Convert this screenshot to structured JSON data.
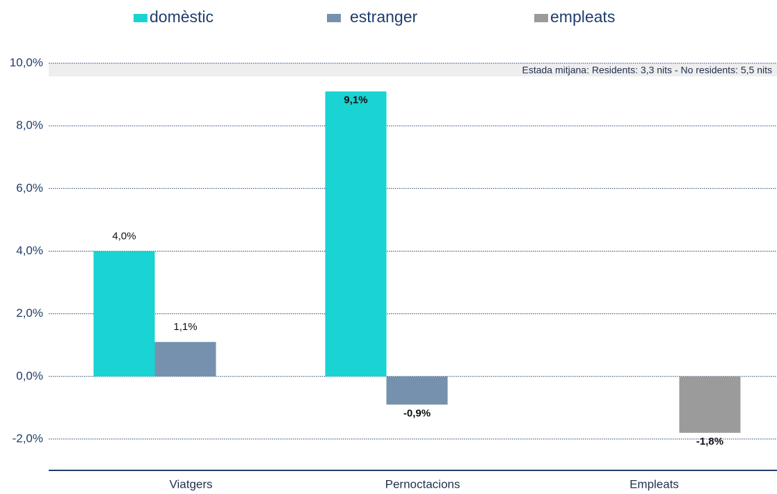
{
  "chart_data": {
    "type": "bar",
    "categories": [
      "Viatgers",
      "Pernoctacions",
      "Empleats"
    ],
    "series": [
      {
        "name": "domèstic",
        "color": "#1ad3d3",
        "values": [
          4.0,
          9.1,
          null
        ],
        "value_labels": [
          "4,0%",
          "9,1%",
          null
        ]
      },
      {
        "name": "estranger",
        "color": "#7691ad",
        "values": [
          1.1,
          -0.9,
          null
        ],
        "value_labels": [
          "1,1%",
          "-0,9%",
          null
        ]
      },
      {
        "name": "empleats",
        "color": "#9b9b9b",
        "values": [
          null,
          null,
          -1.8
        ],
        "value_labels": [
          null,
          null,
          "-1,8%"
        ]
      }
    ],
    "ylim": [
      -3,
      10
    ],
    "yticks": [
      {
        "value": -2,
        "label": "-2,0%"
      },
      {
        "value": 0,
        "label": "0,0%"
      },
      {
        "value": 2,
        "label": "2,0%"
      },
      {
        "value": 4,
        "label": "4,0%"
      },
      {
        "value": 6,
        "label": "6,0%"
      },
      {
        "value": 8,
        "label": "8,0%"
      },
      {
        "value": 10,
        "label": "10,0%"
      }
    ],
    "annotation": "Estada mitjana: Residents: 3,3 nits - No residents: 5,5 nits",
    "grid": true,
    "legend": "top"
  }
}
